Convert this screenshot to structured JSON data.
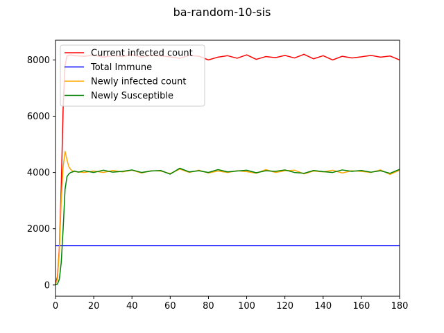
{
  "chart_data": {
    "type": "line",
    "title": "ba-random-10-sis",
    "xlabel": "",
    "ylabel": "",
    "xlim": [
      0,
      180
    ],
    "ylim": [
      -400,
      8700
    ],
    "xticks": [
      0,
      20,
      40,
      60,
      80,
      100,
      120,
      140,
      160,
      180
    ],
    "yticks": [
      0,
      2000,
      4000,
      6000,
      8000
    ],
    "grid": false,
    "legend_position": "top-left",
    "series": [
      {
        "name": "Current infected count",
        "color": "#ff0000",
        "x": [
          0,
          1,
          2,
          3,
          4,
          5,
          6,
          8,
          10,
          15,
          20,
          25,
          30,
          35,
          40,
          45,
          50,
          55,
          60,
          65,
          70,
          75,
          80,
          85,
          90,
          95,
          100,
          105,
          110,
          115,
          120,
          125,
          130,
          135,
          140,
          145,
          150,
          155,
          160,
          165,
          170,
          175,
          180
        ],
        "y": [
          10,
          300,
          1300,
          3500,
          6300,
          7800,
          8150,
          8180,
          8150,
          8130,
          8170,
          8100,
          8150,
          8120,
          8180,
          8100,
          8160,
          8140,
          8110,
          8060,
          8160,
          8130,
          8000,
          8100,
          8150,
          8060,
          8180,
          8020,
          8120,
          8080,
          8160,
          8070,
          8200,
          8040,
          8150,
          8000,
          8130,
          8070,
          8110,
          8160,
          8100,
          8140,
          8000
        ]
      },
      {
        "name": "Total Immune",
        "color": "#0000ff",
        "x": [
          0,
          180
        ],
        "y": [
          1400,
          1400
        ]
      },
      {
        "name": "Newly infected count",
        "color": "#ffa500",
        "x": [
          0,
          1,
          2,
          3,
          4,
          5,
          6,
          7,
          8,
          9,
          10,
          12,
          15,
          20,
          25,
          30,
          35,
          40,
          45,
          50,
          55,
          60,
          65,
          70,
          75,
          80,
          85,
          90,
          95,
          100,
          105,
          110,
          115,
          120,
          125,
          130,
          135,
          140,
          145,
          150,
          155,
          160,
          165,
          170,
          175,
          180
        ],
        "y": [
          10,
          200,
          1200,
          3000,
          4200,
          4750,
          4450,
          4200,
          4100,
          4050,
          4030,
          4020,
          4000,
          4050,
          4000,
          4070,
          4020,
          4080,
          3980,
          4060,
          4050,
          3960,
          4120,
          4000,
          4080,
          3980,
          4050,
          4000,
          4060,
          4030,
          3970,
          4100,
          4000,
          4060,
          4080,
          3950,
          4050,
          4020,
          4080,
          3980,
          4060,
          4040,
          4000,
          4090,
          3930,
          4080
        ]
      },
      {
        "name": "Newly Susceptible",
        "color": "#008000",
        "x": [
          0,
          1,
          2,
          3,
          4,
          5,
          6,
          7,
          8,
          9,
          10,
          12,
          15,
          20,
          25,
          30,
          35,
          40,
          45,
          50,
          55,
          60,
          65,
          70,
          75,
          80,
          85,
          90,
          95,
          100,
          105,
          110,
          115,
          120,
          125,
          130,
          135,
          140,
          145,
          150,
          155,
          160,
          165,
          170,
          175,
          180
        ],
        "y": [
          5,
          30,
          200,
          800,
          2000,
          3400,
          3850,
          3950,
          4000,
          4020,
          4050,
          4010,
          4060,
          4000,
          4080,
          4010,
          4040,
          4090,
          4000,
          4050,
          4070,
          3940,
          4150,
          4020,
          4060,
          4000,
          4100,
          4020,
          4050,
          4080,
          3990,
          4060,
          4040,
          4090,
          4000,
          3970,
          4070,
          4030,
          4000,
          4090,
          4040,
          4070,
          4010,
          4060,
          3970,
          4110
        ]
      }
    ]
  }
}
